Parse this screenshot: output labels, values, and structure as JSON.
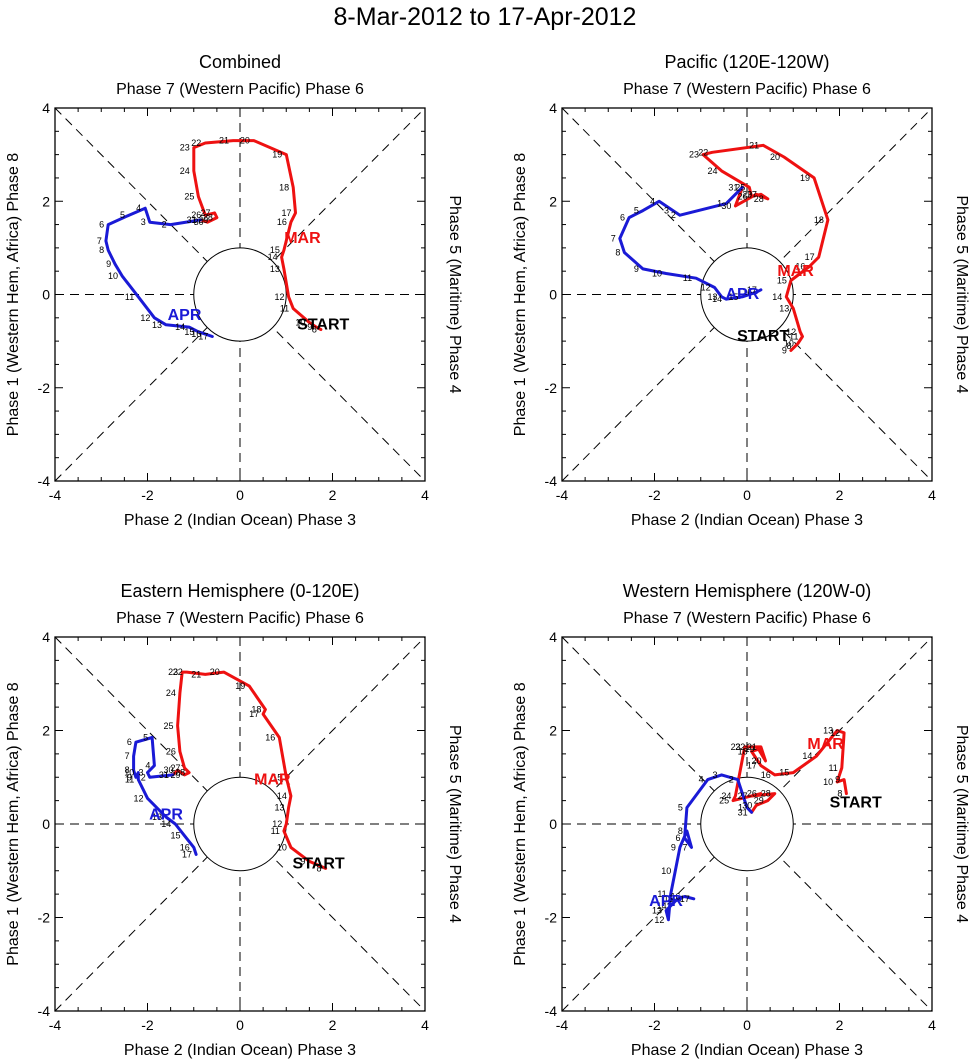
{
  "figure_title": "8-Mar-2012 to 17-Apr-2012",
  "colors": {
    "mar": "#ee1111",
    "apr": "#1a1ad6",
    "start": "#000000",
    "axis": "#000000"
  },
  "chart_data": [
    {
      "type": "line",
      "title": "Combined",
      "top_label": "Phase 7 (Western Pacific) Phase 6",
      "xlabel": "Phase 2 (Indian Ocean) Phase 3",
      "ylabel": "Phase 1 (Western Hem, Africa) Phase 8",
      "right_label": "Phase 5 (Maritime) Phase 4",
      "xlim": [
        -4,
        4
      ],
      "ylim": [
        -4,
        4
      ],
      "xticks": [
        "-4",
        "-2",
        "0",
        "2",
        "4"
      ],
      "yticks": [
        "-4",
        "-2",
        "0",
        "2",
        "4"
      ],
      "start_label": "START",
      "mar_label": "MAR",
      "apr_label": "APR",
      "start_pos": [
        1.8,
        -0.75
      ],
      "mar_pos": [
        1.35,
        1.1
      ],
      "apr_pos": [
        -1.2,
        -0.55
      ],
      "series": [
        {
          "name": "MAR",
          "color": "#ee1111",
          "days": [
            "8",
            "9",
            "10",
            "11",
            "12",
            "13",
            "14",
            "15",
            "16",
            "17",
            "18",
            "19",
            "20",
            "21",
            "22",
            "23",
            "24",
            "25",
            "26",
            "27",
            "28",
            "29",
            "30",
            "31"
          ],
          "x": [
            1.75,
            1.65,
            1.5,
            1.15,
            1.05,
            0.95,
            0.9,
            0.95,
            1.1,
            1.2,
            1.15,
            1.0,
            0.3,
            -0.15,
            -0.75,
            -1.0,
            -1.0,
            -0.9,
            -0.75,
            -0.55,
            -0.5,
            -0.6,
            -0.7,
            -0.85
          ],
          "y": [
            -0.75,
            -0.7,
            -0.6,
            -0.3,
            -0.05,
            0.55,
            0.8,
            0.95,
            1.55,
            1.75,
            2.3,
            3.0,
            3.3,
            3.3,
            3.25,
            3.15,
            2.65,
            2.1,
            1.7,
            1.75,
            1.65,
            1.6,
            1.55,
            1.6
          ]
        },
        {
          "name": "APR",
          "color": "#1a1ad6",
          "days": [
            "1",
            "2",
            "3",
            "4",
            "5",
            "6",
            "7",
            "8",
            "9",
            "10",
            "11",
            "12",
            "13",
            "14",
            "15",
            "16",
            "17"
          ],
          "x": [
            -0.85,
            -1.5,
            -1.95,
            -2.05,
            -2.4,
            -2.85,
            -2.9,
            -2.85,
            -2.7,
            -2.55,
            -2.2,
            -1.85,
            -1.6,
            -1.1,
            -0.9,
            -0.75,
            -0.6
          ],
          "y": [
            1.6,
            1.5,
            1.55,
            1.85,
            1.7,
            1.5,
            1.15,
            0.95,
            0.65,
            0.4,
            -0.05,
            -0.5,
            -0.65,
            -0.7,
            -0.8,
            -0.85,
            -0.9
          ]
        }
      ]
    },
    {
      "type": "line",
      "title": "Pacific (120E-120W)",
      "top_label": "Phase 7 (Western Pacific) Phase 6",
      "xlabel": "Phase 2 (Indian Ocean) Phase 3",
      "ylabel": "Phase 1 (Western Hem, Africa) Phase 8",
      "right_label": "Phase 5 (Maritime) Phase 4",
      "xlim": [
        -4,
        4
      ],
      "ylim": [
        -4,
        4
      ],
      "xticks": [
        "-4",
        "-2",
        "0",
        "2",
        "4"
      ],
      "yticks": [
        "-4",
        "-2",
        "0",
        "2",
        "4"
      ],
      "start_label": "START",
      "mar_label": "MAR",
      "apr_label": "APR",
      "start_pos": [
        0.35,
        -1.0
      ],
      "mar_pos": [
        1.05,
        0.4
      ],
      "apr_pos": [
        -0.1,
        -0.1
      ],
      "series": [
        {
          "name": "MAR",
          "color": "#ee1111",
          "days": [
            "8",
            "9",
            "10",
            "11",
            "12",
            "13",
            "14",
            "15",
            "16",
            "17",
            "18",
            "19",
            "20",
            "21",
            "22",
            "23",
            "24",
            "25",
            "26",
            "27",
            "28",
            "29",
            "30",
            "31"
          ],
          "x": [
            1.05,
            0.95,
            1.1,
            1.2,
            1.15,
            1.0,
            0.85,
            0.95,
            1.35,
            1.55,
            1.75,
            1.45,
            0.8,
            0.35,
            -0.75,
            -0.95,
            -0.55,
            0.05,
            0.1,
            0.3,
            0.45,
            0.2,
            -0.25,
            -0.1
          ],
          "y": [
            -1.1,
            -1.2,
            -1.05,
            -0.9,
            -0.8,
            -0.3,
            -0.05,
            0.3,
            0.6,
            0.8,
            1.6,
            2.5,
            2.95,
            3.2,
            3.05,
            3.0,
            2.65,
            2.3,
            2.1,
            2.15,
            2.05,
            2.15,
            1.9,
            2.3
          ]
        },
        {
          "name": "APR",
          "color": "#1a1ad6",
          "days": [
            "1",
            "2",
            "3",
            "4",
            "5",
            "6",
            "7",
            "8",
            "9",
            "10",
            "11",
            "12",
            "13",
            "14",
            "15",
            "16",
            "17"
          ],
          "x": [
            -0.45,
            -1.45,
            -1.6,
            -1.9,
            -2.25,
            -2.55,
            -2.75,
            -2.65,
            -2.25,
            -1.75,
            -1.1,
            -0.7,
            -0.55,
            -0.45,
            -0.1,
            0.2,
            0.3
          ],
          "y": [
            1.95,
            1.7,
            1.8,
            2.0,
            1.8,
            1.65,
            1.2,
            0.9,
            0.55,
            0.45,
            0.35,
            0.15,
            -0.05,
            -0.1,
            -0.05,
            0.05,
            0.1
          ]
        }
      ]
    },
    {
      "type": "line",
      "title": "Eastern Hemisphere (0-120E)",
      "top_label": "Phase 7 (Western Pacific) Phase 6",
      "xlabel": "Phase 2 (Indian Ocean) Phase 3",
      "ylabel": "Phase 1 (Western Hem, Africa) Phase 8",
      "right_label": "Phase 5 (Maritime) Phase 4",
      "xlim": [
        -4,
        4
      ],
      "ylim": [
        -4,
        4
      ],
      "xticks": [
        "-4",
        "-2",
        "0",
        "2",
        "4"
      ],
      "yticks": [
        "-4",
        "-2",
        "0",
        "2",
        "4"
      ],
      "start_label": "START",
      "mar_label": "MAR",
      "apr_label": "APR",
      "start_pos": [
        1.7,
        -0.95
      ],
      "mar_pos": [
        0.7,
        0.85
      ],
      "apr_pos": [
        -1.6,
        0.1
      ],
      "series": [
        {
          "name": "MAR",
          "color": "#ee1111",
          "days": [
            "8",
            "9",
            "10",
            "11",
            "12",
            "13",
            "14",
            "15",
            "16",
            "17",
            "18",
            "19",
            "20",
            "21",
            "22",
            "23",
            "24",
            "25",
            "26",
            "27",
            "28",
            "29",
            "30",
            "31"
          ],
          "x": [
            1.85,
            1.5,
            1.1,
            0.95,
            1.0,
            1.05,
            1.1,
            1.0,
            0.85,
            0.5,
            0.55,
            0.2,
            -0.35,
            -0.75,
            -1.15,
            -1.25,
            -1.3,
            -1.35,
            -1.3,
            -1.2,
            -1.1,
            -1.2,
            -1.35,
            -1.45
          ],
          "y": [
            -0.95,
            -0.8,
            -0.5,
            -0.15,
            0.0,
            0.35,
            0.6,
            1.0,
            1.85,
            2.35,
            2.45,
            2.95,
            3.25,
            3.2,
            3.25,
            3.25,
            2.8,
            2.1,
            1.55,
            1.2,
            1.1,
            1.05,
            1.15,
            1.05
          ]
        },
        {
          "name": "APR",
          "color": "#1a1ad6",
          "days": [
            "1",
            "2",
            "3",
            "4",
            "5",
            "6",
            "7",
            "8",
            "9",
            "10",
            "11",
            "12",
            "13",
            "14",
            "15",
            "16",
            "17"
          ],
          "x": [
            -1.45,
            -1.95,
            -2.0,
            -1.85,
            -1.9,
            -2.25,
            -2.3,
            -2.3,
            -2.25,
            -2.2,
            -2.2,
            -2.0,
            -1.6,
            -1.4,
            -1.2,
            -1.0,
            -0.95
          ],
          "y": [
            1.05,
            1.0,
            1.1,
            1.25,
            1.85,
            1.75,
            1.45,
            1.15,
            1.0,
            1.1,
            0.95,
            0.55,
            0.15,
            0.0,
            -0.25,
            -0.5,
            -0.65
          ]
        }
      ]
    },
    {
      "type": "line",
      "title": "Western Hemisphere (120W-0)",
      "top_label": "Phase 7 (Western Pacific) Phase 6",
      "xlabel": "Phase 2 (Indian Ocean) Phase 3",
      "ylabel": "Phase 1 (Western Hem, Africa) Phase 8",
      "right_label": "Phase 5 (Maritime) Phase 4",
      "xlim": [
        -4,
        4
      ],
      "ylim": [
        -4,
        4
      ],
      "xticks": [
        "-4",
        "-2",
        "0",
        "2",
        "4"
      ],
      "yticks": [
        "-4",
        "-2",
        "0",
        "2",
        "4"
      ],
      "start_label": "START",
      "mar_label": "MAR",
      "apr_label": "APR",
      "start_pos": [
        2.35,
        0.35
      ],
      "mar_pos": [
        1.7,
        1.6
      ],
      "apr_pos": [
        -1.75,
        -1.75
      ],
      "series": [
        {
          "name": "MAR",
          "color": "#ee1111",
          "days": [
            "8",
            "9",
            "10",
            "11",
            "12",
            "13",
            "14",
            "15",
            "16",
            "17",
            "18",
            "19",
            "20",
            "21",
            "22",
            "23",
            "24",
            "25",
            "26",
            "27",
            "28",
            "29",
            "30",
            "31"
          ],
          "x": [
            2.15,
            2.1,
            1.95,
            2.05,
            2.1,
            1.95,
            1.5,
            1.0,
            0.6,
            0.3,
            0.1,
            0.25,
            0.4,
            0.3,
            0.05,
            -0.05,
            -0.25,
            -0.3,
            0.3,
            0.1,
            0.6,
            0.45,
            0.2,
            0.1
          ],
          "y": [
            0.65,
            0.95,
            0.9,
            1.2,
            1.95,
            2.0,
            1.45,
            1.1,
            1.05,
            1.25,
            1.55,
            1.6,
            1.35,
            1.65,
            1.65,
            1.65,
            0.6,
            0.5,
            0.65,
            0.6,
            0.65,
            0.5,
            0.4,
            0.25
          ]
        },
        {
          "name": "APR",
          "color": "#1a1ad6",
          "days": [
            "1",
            "2",
            "3",
            "4",
            "5",
            "6",
            "7",
            "8",
            "9",
            "10",
            "11",
            "12",
            "13",
            "14",
            "15",
            "16",
            "17"
          ],
          "x": [
            0.0,
            -0.2,
            -0.55,
            -0.85,
            -1.3,
            -1.35,
            -1.2,
            -1.3,
            -1.45,
            -1.55,
            -1.65,
            -1.7,
            -1.75,
            -1.65,
            -1.5,
            -1.35,
            -1.15
          ],
          "y": [
            0.35,
            0.95,
            1.05,
            0.95,
            0.35,
            -0.3,
            -0.5,
            -0.15,
            -0.5,
            -1.0,
            -1.5,
            -2.05,
            -1.85,
            -1.75,
            -1.6,
            -1.55,
            -1.6
          ]
        }
      ]
    }
  ]
}
